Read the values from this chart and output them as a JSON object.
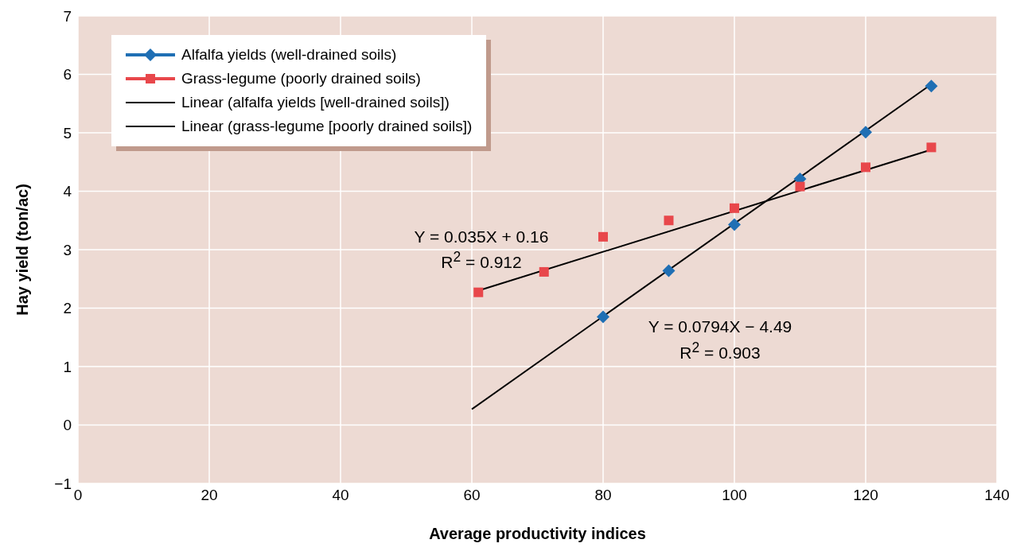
{
  "chart_data": {
    "type": "scatter",
    "xlabel": "Average productivity indices",
    "ylabel": "Hay yield (ton/ac)",
    "xlim": [
      0,
      140
    ],
    "xticks": [
      0,
      20,
      40,
      60,
      80,
      100,
      120,
      140
    ],
    "ylim": [
      -1,
      7
    ],
    "yticks": [
      {
        "value": -1,
        "label": "−1"
      },
      0,
      1,
      2,
      3,
      4,
      5,
      6,
      7
    ],
    "grid": true,
    "legend": "top left",
    "series": [
      {
        "name": "Alfalfa yields (well-drained soils)",
        "marker": "diamond",
        "color": "#1f6fb4",
        "x": [
          80,
          90,
          100,
          110,
          120,
          130
        ],
        "values": [
          1.85,
          2.64,
          3.43,
          4.21,
          5.01,
          5.8
        ]
      },
      {
        "name": "Grass-legume (poorly drained soils)",
        "marker": "square",
        "color": "#e8474b",
        "x": [
          61,
          71,
          80,
          90,
          100,
          110,
          120,
          130
        ],
        "values": [
          2.27,
          2.62,
          3.22,
          3.5,
          3.71,
          4.08,
          4.41,
          4.75
        ]
      },
      {
        "name": "Linear (alfalfa yields [well-drained soils])",
        "type": "line",
        "marker": "none",
        "color": "#000000",
        "x": [
          60,
          130
        ],
        "values": [
          0.27,
          5.83
        ]
      },
      {
        "name": "Linear (grass-legume [poorly drained soils])",
        "type": "line",
        "marker": "none",
        "color": "#000000",
        "x": [
          61,
          130
        ],
        "values": [
          2.3,
          4.71
        ]
      }
    ],
    "annotations": [
      "Y = 0.035X + 0.16",
      "R$^{2}$ = 0.912",
      "Y = 0.0794X − 4.49",
      "R$^{2}$ = 0.903"
    ]
  }
}
